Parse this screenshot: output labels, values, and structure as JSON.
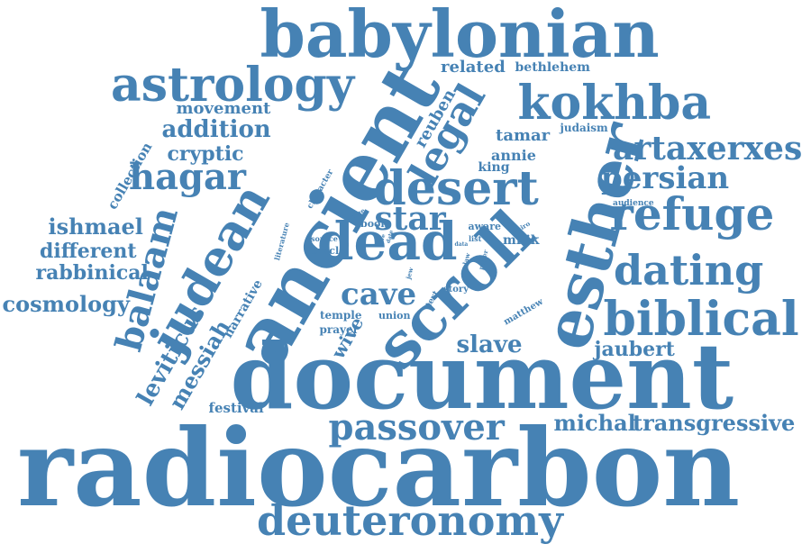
{
  "color": "#4682b4",
  "words": [
    {
      "text": "radiocarbon",
      "rot": 0
    },
    {
      "text": "document",
      "rot": 0
    },
    {
      "text": "babylonian",
      "rot": 0
    },
    {
      "text": "ancient",
      "rot": -60
    },
    {
      "text": "scroll",
      "rot": -45
    },
    {
      "text": "esther",
      "rot": -75
    },
    {
      "text": "deuteronomy",
      "rot": 0
    },
    {
      "text": "judean",
      "rot": -60
    },
    {
      "text": "desert",
      "rot": 0
    },
    {
      "text": "dead",
      "rot": 0
    },
    {
      "text": "kokhba",
      "rot": 0
    },
    {
      "text": "astrology",
      "rot": 0
    },
    {
      "text": "refuge",
      "rot": 0
    },
    {
      "text": "biblical",
      "rot": 0
    },
    {
      "text": "dating",
      "rot": 0
    },
    {
      "text": "passover",
      "rot": 0
    },
    {
      "text": "artaxerxes",
      "rot": 0
    },
    {
      "text": "legal",
      "rot": -60
    },
    {
      "text": "balaam",
      "rot": -75
    },
    {
      "text": "hagar",
      "rot": 0
    },
    {
      "text": "persian",
      "rot": 0
    },
    {
      "text": "star",
      "rot": 0
    },
    {
      "text": "cave",
      "rot": 0
    },
    {
      "text": "transgressive",
      "rot": 0
    },
    {
      "text": "leviticus",
      "rot": -60
    },
    {
      "text": "messiah",
      "rot": -60
    },
    {
      "text": "cosmology",
      "rot": 0
    },
    {
      "text": "ishmael",
      "rot": 0
    },
    {
      "text": "different",
      "rot": 0
    },
    {
      "text": "rabbinical",
      "rot": 0
    },
    {
      "text": "addition",
      "rot": 0
    },
    {
      "text": "cryptic",
      "rot": 0
    },
    {
      "text": "movement",
      "rot": 0
    },
    {
      "text": "slave",
      "rot": 0
    },
    {
      "text": "jaubert",
      "rot": 0
    },
    {
      "text": "michal",
      "rot": 0
    },
    {
      "text": "reuben",
      "rot": -60
    },
    {
      "text": "related",
      "rot": 0
    },
    {
      "text": "bethlehem",
      "rot": 0
    },
    {
      "text": "tamar",
      "rot": 0
    },
    {
      "text": "annie",
      "rot": 0
    },
    {
      "text": "king",
      "rot": 0
    },
    {
      "text": "judaism",
      "rot": 0
    },
    {
      "text": "wive",
      "rot": -60
    },
    {
      "text": "collection",
      "rot": -60
    },
    {
      "text": "festival",
      "rot": 0
    },
    {
      "text": "narrative",
      "rot": -60
    },
    {
      "text": "prayer",
      "rot": 0
    },
    {
      "text": "temple",
      "rot": 0
    },
    {
      "text": "union",
      "rot": 0
    },
    {
      "text": "matthew",
      "rot": -30
    },
    {
      "text": "story",
      "rot": 0
    },
    {
      "text": "milik",
      "rot": 0
    },
    {
      "text": "book",
      "rot": 0
    },
    {
      "text": "aware",
      "rot": 0
    },
    {
      "text": "audience",
      "rot": 0
    },
    {
      "text": "character",
      "rot": -60
    },
    {
      "text": "literature",
      "rot": -75
    },
    {
      "text": "oracle",
      "rot": 0
    },
    {
      "text": "source",
      "rot": 0
    },
    {
      "text": "argue",
      "rot": -30
    },
    {
      "text": "cairo",
      "rot": -30
    },
    {
      "text": "list",
      "rot": 0
    },
    {
      "text": "data",
      "rot": 0
    },
    {
      "text": "paper",
      "rot": -75
    },
    {
      "text": "law",
      "rot": -75
    },
    {
      "text": "live",
      "rot": -75
    },
    {
      "text": "date",
      "rot": -75
    },
    {
      "text": "jew",
      "rot": -75
    },
    {
      "text": "text",
      "rot": -60
    }
  ]
}
